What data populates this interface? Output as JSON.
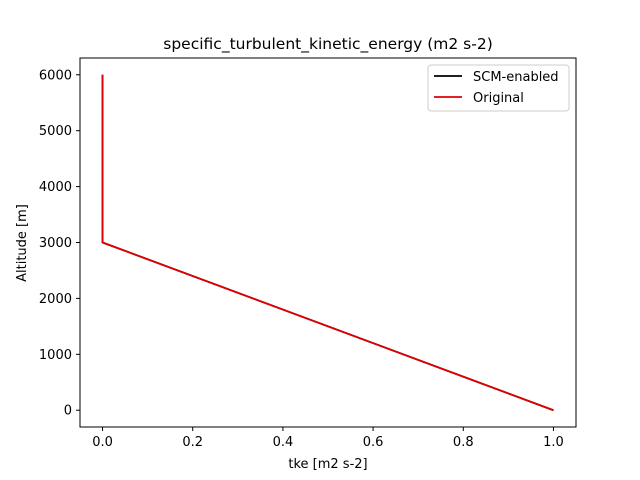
{
  "chart_data": {
    "type": "line",
    "title": "specific_turbulent_kinetic_energy (m2 s-2)",
    "xlabel": "tke [m2 s-2]",
    "ylabel": "Altitude [m]",
    "xlim": [
      -0.05,
      1.05
    ],
    "ylim": [
      -300,
      6300
    ],
    "xticks": [
      0.0,
      0.2,
      0.4,
      0.6,
      0.8,
      1.0
    ],
    "xtick_labels": [
      "0.0",
      "0.2",
      "0.4",
      "0.6",
      "0.8",
      "1.0"
    ],
    "yticks": [
      0,
      1000,
      2000,
      3000,
      4000,
      5000,
      6000
    ],
    "ytick_labels": [
      "0",
      "1000",
      "2000",
      "3000",
      "4000",
      "5000",
      "6000"
    ],
    "grid": false,
    "legend_position": "top-right",
    "series": [
      {
        "name": "SCM-enabled",
        "color": "#000000",
        "x": [
          1.0,
          0.0,
          0.0
        ],
        "y": [
          0,
          3000,
          6000
        ]
      },
      {
        "name": "Original",
        "color": "#e00000",
        "x": [
          1.0,
          0.0,
          0.0
        ],
        "y": [
          0,
          3000,
          6000
        ]
      }
    ]
  }
}
